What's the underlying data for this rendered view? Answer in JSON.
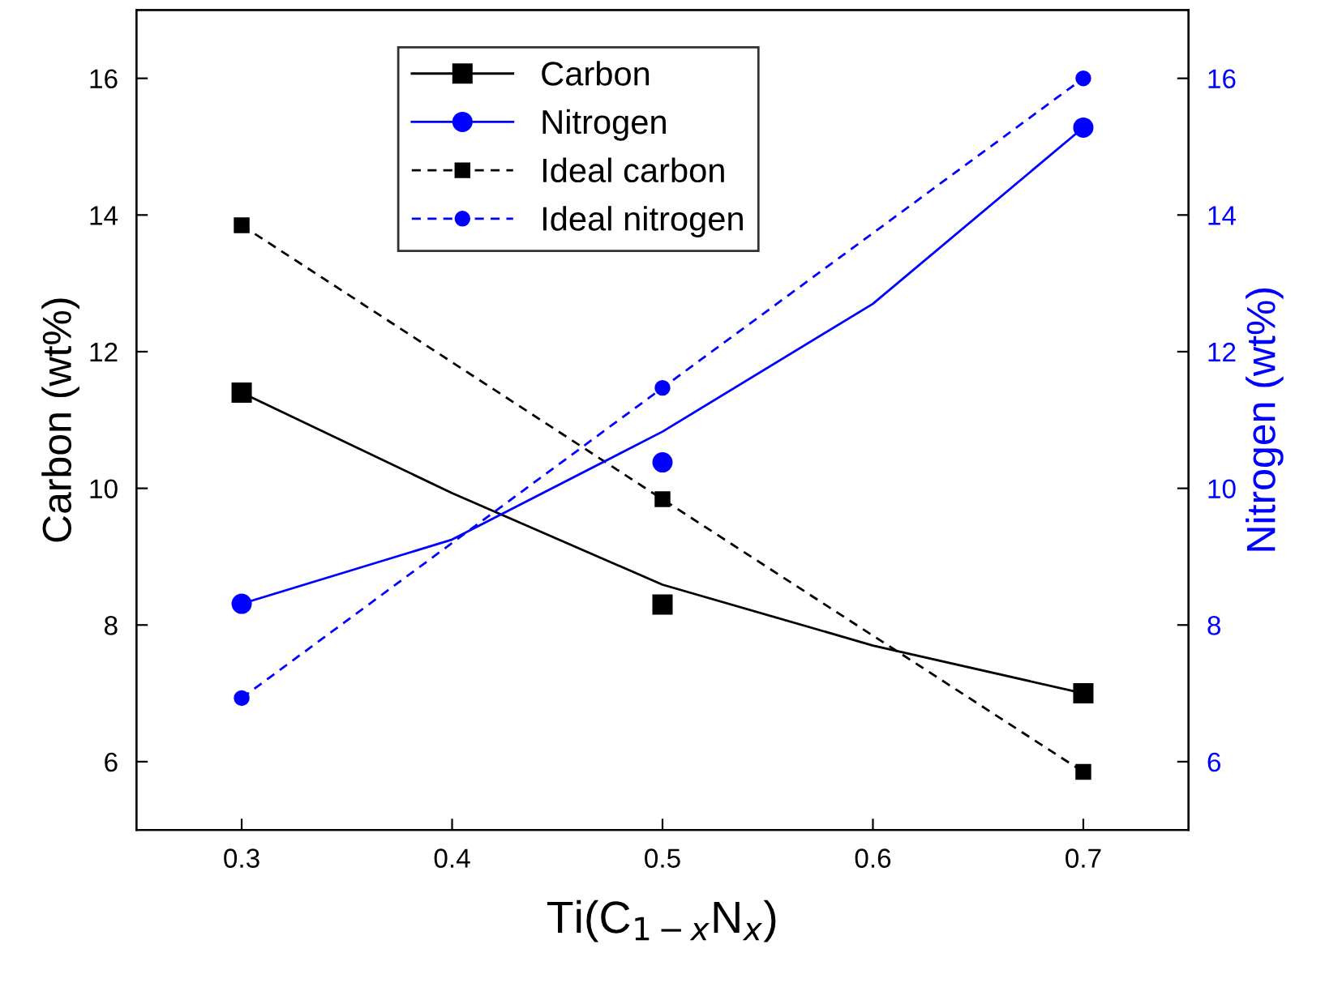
{
  "chart_data": {
    "type": "line",
    "xlabel": "Ti(C$_{1−x}$N$_{x}$)",
    "ylabel": "Carbon (wt%)",
    "y2label": "Nitrogen (wt%)",
    "xlim": [
      0.25,
      0.75
    ],
    "xticks": [
      0.3,
      0.4,
      0.5,
      0.6,
      0.7
    ],
    "ylim": [
      5,
      17
    ],
    "yticks": [
      6,
      8,
      10,
      12,
      14,
      16
    ],
    "y2lim": [
      5,
      17
    ],
    "y2ticks": [
      6,
      8,
      10,
      12,
      14,
      16
    ],
    "legend": "top",
    "grid": false,
    "series": [
      {
        "name": "Carbon",
        "type": "scatter",
        "marker": "square",
        "color": "#000000",
        "x": [
          0.3,
          0.5,
          0.7
        ],
        "values": [
          11.4,
          8.3,
          7.0
        ]
      },
      {
        "marker": "none",
        "line_style": "solid",
        "color": "#000000",
        "x": [
          0.3,
          0.4,
          0.5,
          0.6,
          0.7
        ],
        "values": [
          11.4,
          9.93,
          8.59,
          7.7,
          7.0
        ]
      },
      {
        "name": "Nitrogen",
        "type": "scatter",
        "marker": "circle",
        "color": "#0000ff",
        "axis": "y2",
        "x": [
          0.3,
          0.5,
          0.7
        ],
        "values": [
          8.31,
          10.38,
          15.28
        ]
      },
      {
        "marker": "none",
        "line_style": "solid",
        "color": "#0000ff",
        "axis": "y2",
        "x": [
          0.3,
          0.4,
          0.5,
          0.6,
          0.7
        ],
        "values": [
          8.31,
          9.25,
          10.83,
          12.7,
          15.28
        ]
      },
      {
        "name": "Ideal carbon",
        "marker": "square",
        "line_style": "dashed",
        "color": "#000000",
        "x": [
          0.3,
          0.5,
          0.7
        ],
        "values": [
          13.85,
          9.84,
          5.85
        ]
      },
      {
        "name": "Ideal nitrogen",
        "marker": "circle",
        "line_style": "dashed",
        "color": "#0000ff",
        "axis": "y2",
        "x": [
          0.3,
          0.5,
          0.7
        ],
        "values": [
          6.93,
          11.47,
          16.0
        ]
      }
    ]
  }
}
